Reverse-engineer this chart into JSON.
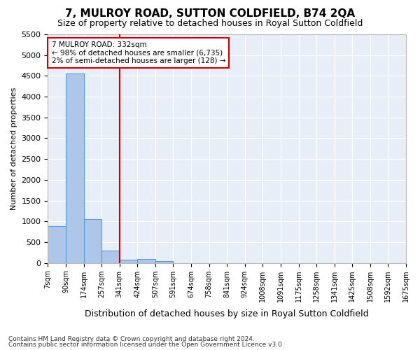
{
  "title": "7, MULROY ROAD, SUTTON COLDFIELD, B74 2QA",
  "subtitle": "Size of property relative to detached houses in Royal Sutton Coldfield",
  "xlabel": "Distribution of detached houses by size in Royal Sutton Coldfield",
  "ylabel": "Number of detached properties",
  "footnote1": "Contains HM Land Registry data © Crown copyright and database right 2024.",
  "footnote2": "Contains public sector information licensed under the Open Government Licence v3.0.",
  "bin_labels": [
    "7sqm",
    "90sqm",
    "174sqm",
    "257sqm",
    "341sqm",
    "424sqm",
    "507sqm",
    "591sqm",
    "674sqm",
    "758sqm",
    "841sqm",
    "924sqm",
    "1008sqm",
    "1091sqm",
    "1175sqm",
    "1258sqm",
    "1341sqm",
    "1425sqm",
    "1508sqm",
    "1592sqm",
    "1675sqm"
  ],
  "bar_values": [
    880,
    4550,
    1060,
    300,
    85,
    90,
    50,
    0,
    0,
    0,
    0,
    0,
    0,
    0,
    0,
    0,
    0,
    0,
    0,
    0
  ],
  "bar_color": "#aec6e8",
  "bar_edge_color": "#5b9bd5",
  "bg_color": "#e8eef7",
  "grid_color": "#ffffff",
  "red_line_x": 4.0,
  "annotation_text": "7 MULROY ROAD: 332sqm\n← 98% of detached houses are smaller (6,735)\n2% of semi-detached houses are larger (128) →",
  "annotation_box_color": "#ffffff",
  "annotation_box_edge": "#cc0000",
  "ylim": [
    0,
    5500
  ],
  "yticks": [
    0,
    500,
    1000,
    1500,
    2000,
    2500,
    3000,
    3500,
    4000,
    4500,
    5000,
    5500
  ]
}
